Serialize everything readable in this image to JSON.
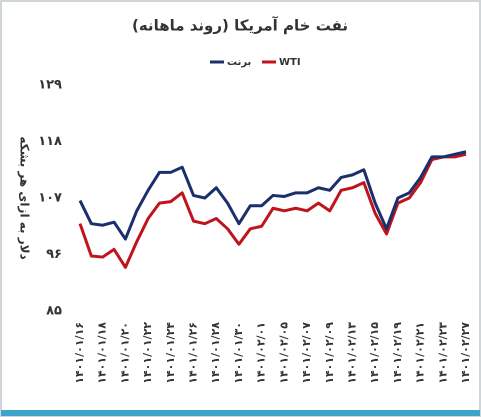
{
  "chart_data": {
    "type": "line",
    "title": "نفت خام آمریکا (روند ماهانه)",
    "y_label": "دلار به ازای هر بشکه",
    "categories": [
      "۱۴۰۱/۰۱/۱۶",
      null,
      "۱۴۰۱/۰۱/۱۸",
      null,
      "۱۴۰۱/۰۱/۲۰",
      null,
      "۱۴۰۱/۰۱/۲۲",
      null,
      "۱۴۰۱/۰۱/۲۴",
      null,
      "۱۴۰۱/۰۱/۲۶",
      null,
      "۱۴۰۱/۰۱/۲۸",
      null,
      "۱۴۰۱/۰۱/۳۰",
      null,
      "۱۴۰۱/۰۲/۰۱",
      null,
      "۱۴۰۱/۰۲/۰۵",
      null,
      "۱۴۰۱/۰۲/۰۷",
      null,
      "۱۴۰۱/۰۲/۰۹",
      null,
      "۱۴۰۱/۰۲/۱۳",
      null,
      "۱۴۰۱/۰۲/۱۵",
      null,
      "۱۴۰۱/۰۲/۱۹",
      null,
      "۱۴۰۱/۰۲/۲۱",
      null,
      "۱۴۰۱/۰۲/۲۳",
      null,
      "۱۴۰۱/۰۲/۲۷"
    ],
    "series": [
      {
        "name": "WTI",
        "color": "#c0141c",
        "values": [
          102,
          95.7,
          95.5,
          97,
          93.5,
          98.5,
          103,
          106,
          106.3,
          108,
          102.5,
          102,
          103,
          101,
          98,
          101,
          101.5,
          105,
          104.5,
          105,
          104.5,
          106,
          104.5,
          108.5,
          109,
          110,
          104,
          100,
          106,
          107,
          110,
          114.5,
          115,
          115,
          115.5
        ]
      },
      {
        "name": "برنت",
        "color": "#1a2f6b",
        "values": [
          106.5,
          102,
          101.7,
          102.3,
          99,
          104.5,
          108.5,
          112,
          112,
          113,
          107.5,
          107,
          109,
          106,
          102,
          105.5,
          105.5,
          107.5,
          107.3,
          108,
          108,
          109,
          108.5,
          111,
          111.5,
          112.5,
          106,
          101,
          107,
          108,
          111,
          115,
          115,
          115.5,
          116
        ]
      }
    ],
    "ylim": [
      85,
      129
    ],
    "yticks": [
      {
        "value": 85,
        "label": "۸۵"
      },
      {
        "value": 96,
        "label": "۹۶"
      },
      {
        "value": 107,
        "label": "۱۰۷"
      },
      {
        "value": 118,
        "label": "۱۱۸"
      },
      {
        "value": 129,
        "label": "۱۲۹"
      }
    ],
    "legend": "top"
  }
}
